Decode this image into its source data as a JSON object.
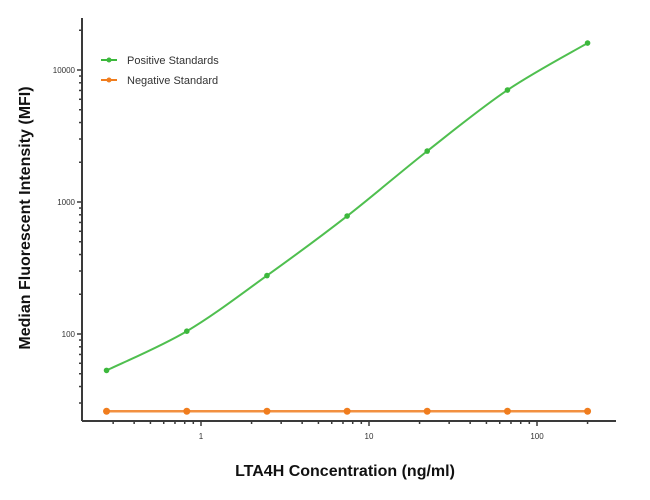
{
  "chart_data": {
    "type": "line",
    "title": "",
    "xlabel": "LTA4H Concentration (ng/ml)",
    "ylabel": "Median  Fluorescent Intensity  (MFI)",
    "x_scale": "log",
    "y_scale": "log",
    "xlim": [
      0.2,
      350
    ],
    "ylim": [
      20,
      25000
    ],
    "x_tick_labels": [
      "1",
      "10",
      "100"
    ],
    "x_ticks": [
      1,
      10,
      100
    ],
    "y_tick_labels": [
      "100",
      "1000",
      "10000"
    ],
    "y_ticks": [
      100,
      1000,
      10000
    ],
    "grid": false,
    "legend_position": "upper left",
    "x": [
      0.274,
      0.823,
      2.47,
      7.41,
      22.2,
      66.7,
      200
    ],
    "series": [
      {
        "name": "Positive Standards",
        "color": "#3cb83c",
        "values": [
          53,
          105,
          277,
          783,
          2430,
          7050,
          16000
        ]
      },
      {
        "name": "Negative Standard",
        "color": "#f07d1e",
        "values": [
          26,
          26,
          26,
          26,
          26,
          26,
          26
        ]
      }
    ]
  }
}
